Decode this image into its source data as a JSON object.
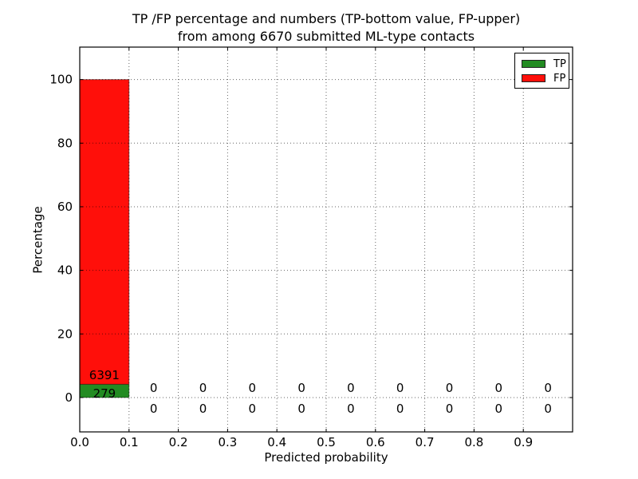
{
  "title": {
    "line1": "TP /FP percentage and numbers (TP-bottom value, FP-upper)",
    "line2": "from among 6670 submitted ML-type contacts"
  },
  "chart_data": {
    "type": "bar",
    "stacked": true,
    "title": "TP /FP percentage and numbers (TP-bottom value, FP-upper) from among 6670 submitted ML-type contacts",
    "xlabel": "Predicted probability",
    "ylabel": "Percentage",
    "total": 6670,
    "bin_width": 0.1,
    "bin_starts": [
      0.0,
      0.1,
      0.2,
      0.3,
      0.4,
      0.5,
      0.6,
      0.7,
      0.8,
      0.9
    ],
    "series": [
      {
        "name": "TP",
        "color": "#228b22",
        "counts": [
          279,
          0,
          0,
          0,
          0,
          0,
          0,
          0,
          0,
          0
        ]
      },
      {
        "name": "FP",
        "color": "#ff0f0a",
        "counts": [
          6391,
          0,
          0,
          0,
          0,
          0,
          0,
          0,
          0,
          0
        ]
      }
    ],
    "first_bin_percent": {
      "tp": 4.18,
      "fp": 95.82
    },
    "x_tick_labels": [
      "0.0",
      "0.1",
      "0.2",
      "0.3",
      "0.4",
      "0.5",
      "0.6",
      "0.7",
      "0.8",
      "0.9"
    ],
    "y_tick_values": [
      0,
      20,
      40,
      60,
      80,
      100
    ],
    "xlim": [
      0,
      1.0
    ],
    "ylim": [
      -10.8,
      110.2
    ],
    "grid": true,
    "grid_style": "dotted",
    "legend": {
      "position": "upper right",
      "entries": [
        {
          "label": "TP",
          "color": "#228b22"
        },
        {
          "label": "FP",
          "color": "#ff0f0a"
        }
      ]
    }
  }
}
